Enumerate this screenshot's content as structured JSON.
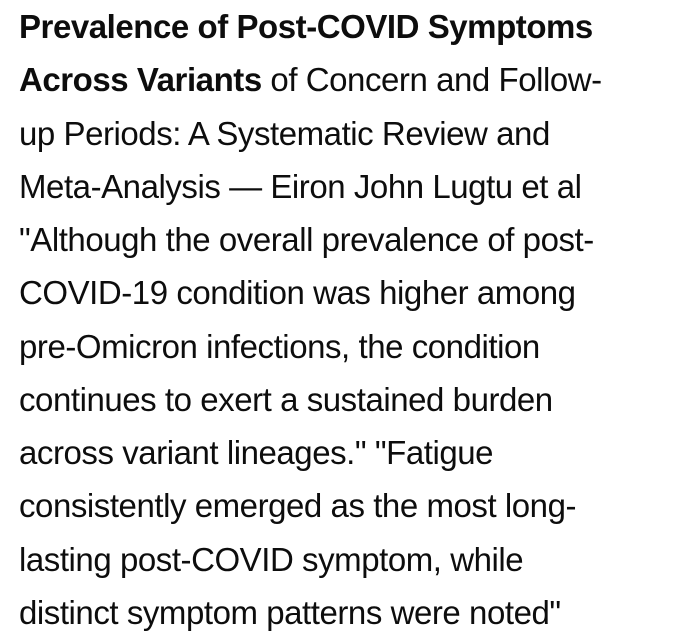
{
  "page": {
    "background_color": "#ffffff",
    "text_color": "#0d0d0d"
  },
  "summary": {
    "title_bold": "Prevalence of Post-COVID Symptoms Across Variants",
    "title_rest": "of Concern and Follow-up Periods: A Systematic Review and Meta-Analysis",
    "attribution": "Eiron John Lugtu et al",
    "quote_1": "\"Although the overall prevalence of post-COVID-19 condition was higher among pre-Omicron infections, the condition continues to exert a sustained burden across variant lineages.\"",
    "quote_2": "\"Fatigue consistently emerged as the most long-lasting post-COVID symptom, while distinct symptom patterns were noted\"",
    "lines": [
      {
        "segments": [
          {
            "text": "Prevalence of Post-COVID Symptoms",
            "bold": true
          }
        ]
      },
      {
        "segments": [
          {
            "text": "Across Variants",
            "bold": true
          },
          {
            "text": " of Concern and Follow-",
            "bold": false
          }
        ]
      },
      {
        "segments": [
          {
            "text": "up Periods: A Systematic Review and",
            "bold": false
          }
        ]
      },
      {
        "segments": [
          {
            "text": "Meta-Analysis — Eiron John Lugtu et al",
            "bold": false
          }
        ]
      },
      {
        "segments": [
          {
            "text": "\"Although the overall prevalence of post-",
            "bold": false
          }
        ]
      },
      {
        "segments": [
          {
            "text": "COVID-19 condition was higher among",
            "bold": false
          }
        ]
      },
      {
        "segments": [
          {
            "text": "pre-Omicron infections, the condition",
            "bold": false
          }
        ]
      },
      {
        "segments": [
          {
            "text": "continues to exert a sustained burden",
            "bold": false
          }
        ]
      },
      {
        "segments": [
          {
            "text": "across variant lineages.\" \"Fatigue",
            "bold": false
          }
        ]
      },
      {
        "segments": [
          {
            "text": "consistently emerged as the most long-",
            "bold": false
          }
        ]
      },
      {
        "segments": [
          {
            "text": "lasting post-COVID symptom, while",
            "bold": false
          }
        ]
      },
      {
        "segments": [
          {
            "text": "distinct symptom patterns were noted\"",
            "bold": false
          }
        ]
      }
    ]
  }
}
